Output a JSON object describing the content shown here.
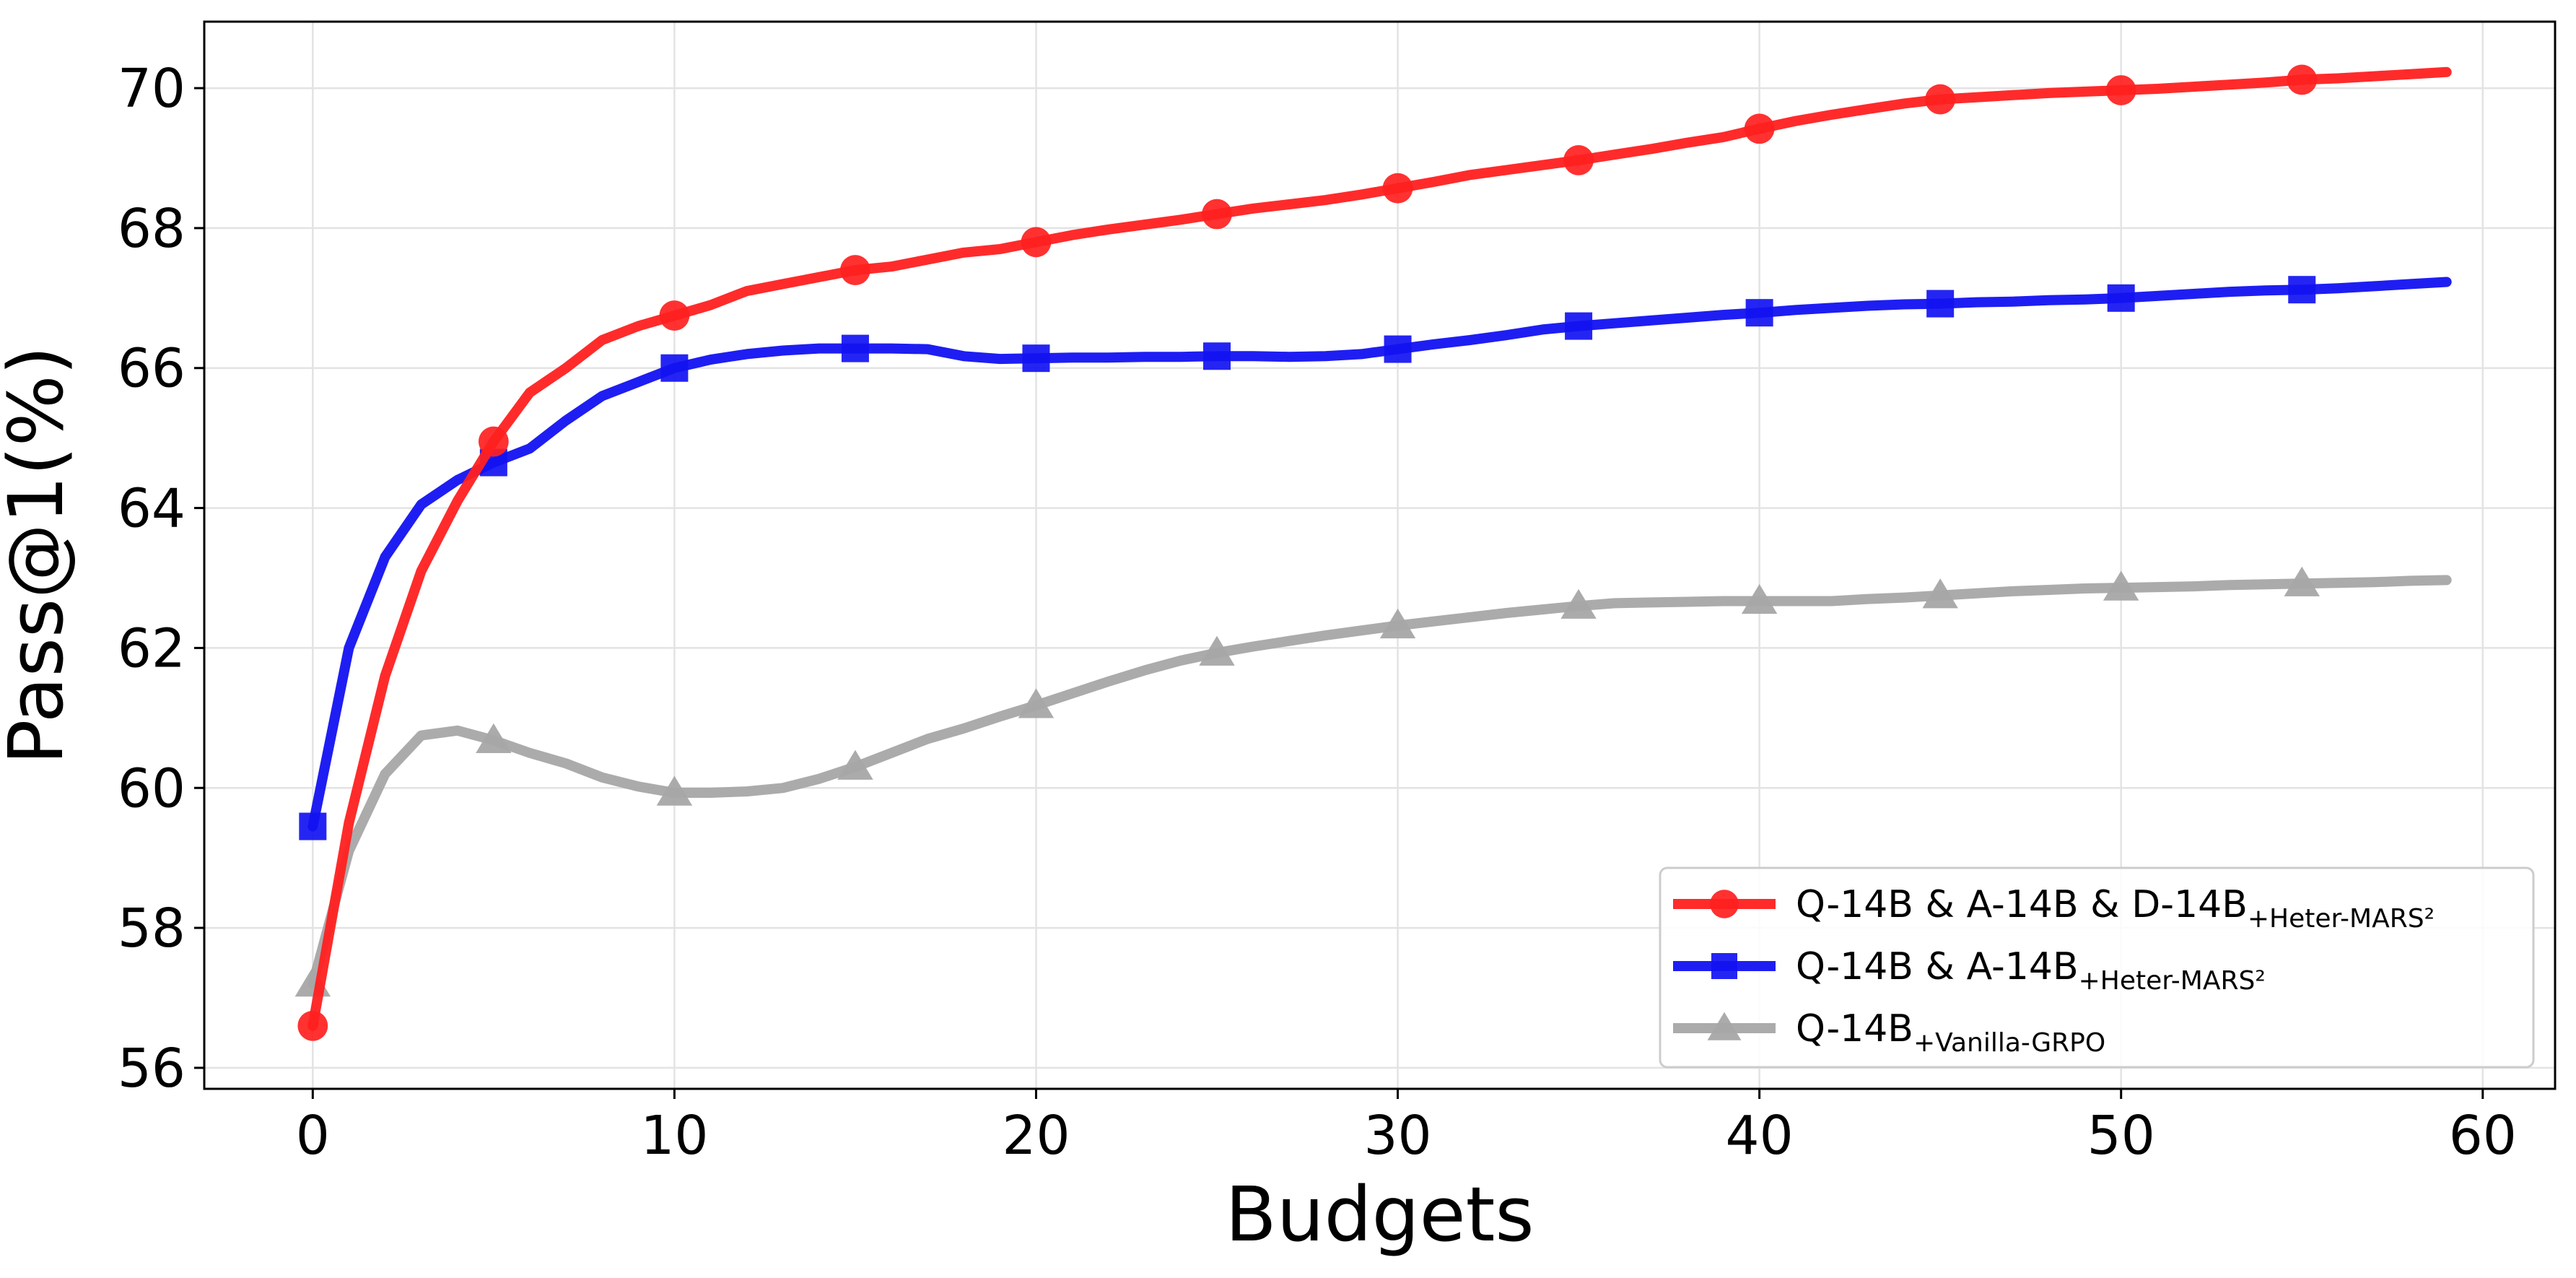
{
  "chart_data": {
    "type": "line",
    "title": "",
    "xlabel": "Budgets",
    "ylabel": "Pass@1(%)",
    "xlim": [
      -3,
      62
    ],
    "ylim": [
      55.7,
      70.95
    ],
    "xticks": [
      0,
      10,
      20,
      30,
      40,
      50,
      60
    ],
    "yticks": [
      56,
      58,
      60,
      62,
      64,
      66,
      68,
      70
    ],
    "grid": true,
    "legend_position": "bottom-right",
    "series": [
      {
        "name": "Q-14B & A-14B & D-14B",
        "name_subscript": "+Heter-MARS²",
        "color": "#ff2020",
        "marker": "circle",
        "x": [
          0,
          1,
          2,
          3,
          4,
          5,
          6,
          7,
          8,
          9,
          10,
          11,
          12,
          13,
          14,
          15,
          16,
          17,
          18,
          19,
          20,
          21,
          22,
          23,
          24,
          25,
          26,
          27,
          28,
          29,
          30,
          31,
          32,
          33,
          34,
          35,
          36,
          37,
          38,
          39,
          40,
          41,
          42,
          43,
          44,
          45,
          46,
          47,
          48,
          49,
          50,
          51,
          52,
          53,
          54,
          55,
          56,
          57,
          58,
          59
        ],
        "y": [
          56.6,
          59.5,
          61.6,
          63.1,
          64.1,
          64.95,
          65.65,
          66.0,
          66.4,
          66.6,
          66.75,
          66.9,
          67.1,
          67.2,
          67.3,
          67.4,
          67.45,
          67.55,
          67.65,
          67.7,
          67.8,
          67.9,
          67.98,
          68.05,
          68.12,
          68.2,
          68.28,
          68.34,
          68.4,
          68.48,
          68.57,
          68.66,
          68.76,
          68.83,
          68.9,
          68.97,
          69.05,
          69.13,
          69.22,
          69.3,
          69.42,
          69.53,
          69.62,
          69.7,
          69.78,
          69.84,
          69.87,
          69.9,
          69.93,
          69.95,
          69.97,
          69.99,
          70.02,
          70.05,
          70.08,
          70.12,
          70.14,
          70.17,
          70.2,
          70.23
        ],
        "marker_x": [
          0,
          5,
          10,
          15,
          20,
          25,
          30,
          35,
          40,
          45,
          50,
          55
        ]
      },
      {
        "name": "Q-14B & A-14B",
        "name_subscript": "+Heter-MARS²",
        "color": "#1212f2",
        "marker": "square",
        "x": [
          0,
          1,
          2,
          3,
          4,
          5,
          6,
          7,
          8,
          9,
          10,
          11,
          12,
          13,
          14,
          15,
          16,
          17,
          18,
          19,
          20,
          21,
          22,
          23,
          24,
          25,
          26,
          27,
          28,
          29,
          30,
          31,
          32,
          33,
          34,
          35,
          36,
          37,
          38,
          39,
          40,
          41,
          42,
          43,
          44,
          45,
          46,
          47,
          48,
          49,
          50,
          51,
          52,
          53,
          54,
          55,
          56,
          57,
          58,
          59
        ],
        "y": [
          59.45,
          62.0,
          63.3,
          64.05,
          64.4,
          64.65,
          64.85,
          65.25,
          65.6,
          65.8,
          66.0,
          66.12,
          66.2,
          66.25,
          66.28,
          66.28,
          66.28,
          66.27,
          66.17,
          66.13,
          66.14,
          66.15,
          66.15,
          66.16,
          66.16,
          66.17,
          66.17,
          66.16,
          66.17,
          66.2,
          66.27,
          66.34,
          66.4,
          66.47,
          66.55,
          66.6,
          66.64,
          66.68,
          66.72,
          66.76,
          66.79,
          66.83,
          66.86,
          66.89,
          66.91,
          66.92,
          66.94,
          66.95,
          66.97,
          66.98,
          67.0,
          67.03,
          67.06,
          67.09,
          67.11,
          67.12,
          67.14,
          67.17,
          67.2,
          67.23
        ],
        "marker_x": [
          0,
          5,
          10,
          15,
          20,
          25,
          30,
          35,
          40,
          45,
          50,
          55
        ]
      },
      {
        "name": "Q-14B",
        "name_subscript": "+Vanilla-GRPO",
        "color": "#a6a6a6",
        "marker": "triangle",
        "x": [
          0,
          1,
          2,
          3,
          4,
          5,
          6,
          7,
          8,
          9,
          10,
          11,
          12,
          13,
          14,
          15,
          16,
          17,
          18,
          19,
          20,
          21,
          22,
          23,
          24,
          25,
          26,
          27,
          28,
          29,
          30,
          31,
          32,
          33,
          34,
          35,
          36,
          37,
          38,
          39,
          40,
          41,
          42,
          43,
          44,
          45,
          46,
          47,
          48,
          49,
          50,
          51,
          52,
          53,
          54,
          55,
          56,
          57,
          58,
          59
        ],
        "y": [
          57.2,
          59.1,
          60.2,
          60.75,
          60.82,
          60.68,
          60.5,
          60.35,
          60.15,
          60.02,
          59.93,
          59.93,
          59.95,
          60.0,
          60.13,
          60.3,
          60.5,
          60.7,
          60.85,
          61.02,
          61.18,
          61.35,
          61.52,
          61.68,
          61.82,
          61.93,
          62.02,
          62.1,
          62.18,
          62.25,
          62.32,
          62.38,
          62.44,
          62.5,
          62.55,
          62.6,
          62.64,
          62.65,
          62.66,
          62.67,
          62.67,
          62.67,
          62.67,
          62.7,
          62.72,
          62.75,
          62.78,
          62.81,
          62.83,
          62.85,
          62.86,
          62.87,
          62.88,
          62.9,
          62.91,
          62.92,
          62.93,
          62.94,
          62.96,
          62.97
        ],
        "marker_x": [
          0,
          5,
          10,
          15,
          20,
          25,
          30,
          35,
          40,
          45,
          50,
          55
        ]
      }
    ]
  }
}
